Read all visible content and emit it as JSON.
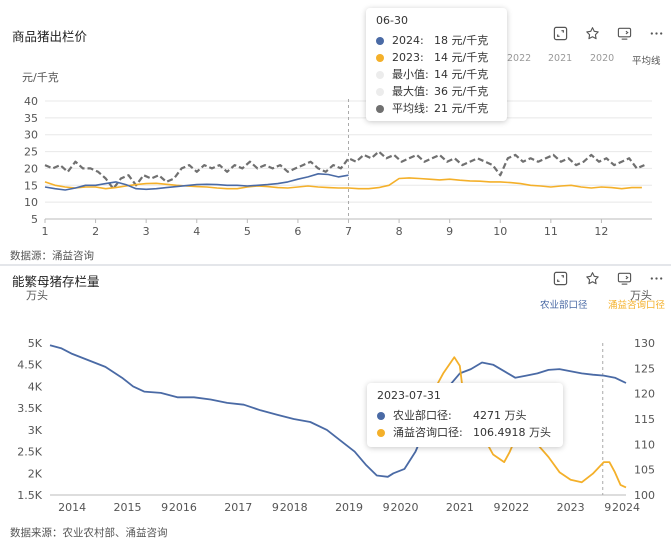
{
  "panel1": {
    "title": "商品猪出栏价",
    "unit": "元/千克",
    "source": "数据源：涌益咨询",
    "year_tabs": [
      "2022",
      "2021",
      "2020",
      "平均线"
    ],
    "tooltip": {
      "date": "06-30",
      "rows": [
        {
          "label": "2024:",
          "value": "18 元/千克",
          "color": "#4a6aa5"
        },
        {
          "label": "2023:",
          "value": "14 元/千克",
          "color": "#f4b02a"
        },
        {
          "label": "最小值:",
          "value": "14 元/千克",
          "color": "#ececec"
        },
        {
          "label": "最大值:",
          "value": "36 元/千克",
          "color": "#ececec"
        },
        {
          "label": "平均线:",
          "value": "21 元/千克",
          "color": "#707070"
        }
      ]
    }
  },
  "panel2": {
    "title": "能繁母猪存栏量",
    "unit_left": "万头",
    "unit_right": "万头",
    "legend_left": "农业部口径",
    "legend_right": "涌益咨询口径",
    "source": "数据来源：农业农村部、涌益咨询",
    "tooltip": {
      "date": "2023-07-31",
      "rows": [
        {
          "label": "农业部口径:",
          "value": "4271 万头",
          "color": "#4a6aa5"
        },
        {
          "label": "涌益咨询口径:",
          "value": "106.4918 万头",
          "color": "#f4b02a"
        }
      ]
    }
  },
  "chart_data": [
    {
      "type": "line",
      "title": "商品猪出栏价",
      "ylabel": "元/千克",
      "x_ticks": [
        "1",
        "2",
        "3",
        "4",
        "5",
        "6",
        "7",
        "8",
        "9",
        "10",
        "11",
        "12"
      ],
      "xlim": [
        1,
        13
      ],
      "ylim": [
        5,
        40
      ],
      "y_ticks": [
        5,
        10,
        15,
        20,
        25,
        30,
        35,
        40
      ],
      "grid": true,
      "legend": "top-right",
      "series": [
        {
          "name": "2024",
          "color": "#4a6aa5",
          "style": "solid",
          "x": [
            1.0,
            1.2,
            1.4,
            1.6,
            1.8,
            2.0,
            2.2,
            2.4,
            2.6,
            2.8,
            3.0,
            3.2,
            3.4,
            3.6,
            3.8,
            4.0,
            4.2,
            4.4,
            4.6,
            4.8,
            5.0,
            5.2,
            5.4,
            5.6,
            5.8,
            6.0,
            6.2,
            6.4,
            6.6,
            6.8,
            7.0
          ],
          "y": [
            14.5,
            14.0,
            13.6,
            14.2,
            15.0,
            15.0,
            15.5,
            16.0,
            15.2,
            14.0,
            13.8,
            14.0,
            14.3,
            14.6,
            14.9,
            15.2,
            15.3,
            15.2,
            15.0,
            15.0,
            14.8,
            15.0,
            15.2,
            15.5,
            16.0,
            16.8,
            17.5,
            18.4,
            18.2,
            17.5,
            18.0
          ]
        },
        {
          "name": "2023",
          "color": "#f4b02a",
          "style": "solid",
          "x": [
            1.0,
            1.2,
            1.4,
            1.6,
            1.8,
            2.0,
            2.2,
            2.4,
            2.6,
            2.8,
            3.0,
            3.2,
            3.4,
            3.6,
            3.8,
            4.0,
            4.2,
            4.4,
            4.6,
            4.8,
            5.0,
            5.2,
            5.4,
            5.6,
            5.8,
            6.0,
            6.2,
            6.4,
            6.6,
            6.8,
            7.0,
            7.2,
            7.4,
            7.6,
            7.8,
            8.0,
            8.2,
            8.4,
            8.6,
            8.8,
            9.0,
            9.2,
            9.4,
            9.6,
            9.8,
            10.0,
            10.2,
            10.4,
            10.6,
            10.8,
            11.0,
            11.2,
            11.4,
            11.6,
            11.8,
            12.0,
            12.2,
            12.4,
            12.6,
            12.8
          ],
          "y": [
            16.0,
            15.0,
            14.5,
            14.2,
            14.5,
            14.5,
            14.0,
            14.3,
            14.8,
            15.2,
            15.5,
            15.6,
            15.3,
            15.0,
            14.8,
            14.6,
            14.5,
            14.2,
            14.0,
            14.0,
            14.5,
            14.8,
            14.6,
            14.3,
            14.2,
            14.5,
            14.8,
            14.5,
            14.3,
            14.2,
            14.2,
            14.0,
            14.0,
            14.3,
            15.0,
            17.0,
            17.2,
            17.0,
            16.8,
            16.6,
            16.8,
            16.5,
            16.3,
            16.2,
            16.0,
            16.0,
            15.8,
            15.5,
            15.0,
            14.8,
            14.5,
            14.8,
            15.0,
            14.5,
            14.2,
            14.5,
            14.3,
            14.0,
            14.3,
            14.3
          ]
        },
        {
          "name": "平均线",
          "color": "#707070",
          "style": "dashed",
          "x": [
            1.0,
            1.15,
            1.3,
            1.45,
            1.6,
            1.75,
            1.9,
            2.05,
            2.2,
            2.35,
            2.5,
            2.65,
            2.8,
            2.95,
            3.1,
            3.25,
            3.4,
            3.55,
            3.7,
            3.85,
            4.0,
            4.15,
            4.3,
            4.45,
            4.6,
            4.75,
            4.9,
            5.05,
            5.2,
            5.35,
            5.5,
            5.65,
            5.8,
            5.95,
            6.1,
            6.25,
            6.4,
            6.55,
            6.7,
            6.85,
            7.0,
            7.15,
            7.3,
            7.45,
            7.6,
            7.75,
            7.9,
            8.05,
            8.2,
            8.35,
            8.5,
            8.65,
            8.8,
            8.95,
            9.1,
            9.25,
            9.4,
            9.55,
            9.7,
            9.85,
            10.0,
            10.15,
            10.3,
            10.45,
            10.6,
            10.75,
            10.9,
            11.05,
            11.2,
            11.35,
            11.5,
            11.65,
            11.8,
            11.95,
            12.1,
            12.25,
            12.4,
            12.55,
            12.7,
            12.85
          ],
          "y": [
            21,
            20,
            21,
            19,
            22,
            20,
            20,
            19,
            17,
            14,
            17,
            18,
            15,
            18,
            17,
            18,
            16,
            17,
            20,
            21,
            19,
            21,
            20,
            21,
            19,
            21,
            20,
            22,
            20,
            21,
            20,
            21,
            19,
            20,
            21,
            22,
            20,
            19,
            21,
            20,
            23,
            22,
            24,
            23,
            25,
            23,
            24,
            22,
            23,
            24,
            22,
            23,
            24,
            22,
            23,
            21,
            22,
            23,
            22,
            21,
            18,
            23,
            24,
            22,
            23,
            22,
            23,
            24,
            22,
            23,
            21,
            22,
            24,
            22,
            23,
            21,
            22,
            23,
            20,
            21
          ]
        }
      ],
      "annotations": [
        {
          "type": "vertical-dashed-line",
          "x": 7.0
        }
      ]
    },
    {
      "type": "line",
      "title": "能繁母猪存栏量",
      "ylabel": "万头",
      "ylabel_right": "万头",
      "x_ticks": [
        "2014",
        "2015",
        "9",
        "2016",
        "2017",
        "9",
        "2018",
        "2019",
        "9",
        "2020",
        "2021",
        "9",
        "2022",
        "2023",
        "9",
        "2024"
      ],
      "xlim": [
        2013.6,
        2024.0
      ],
      "ylim_left": [
        1.5,
        5.0
      ],
      "y_ticks_left": [
        "1.5K",
        "2K",
        "2.5K",
        "3K",
        "3.5K",
        "4K",
        "4.5K",
        "5K"
      ],
      "ylim_right": [
        100,
        130
      ],
      "y_ticks_right": [
        100,
        105,
        110,
        115,
        120,
        125,
        130
      ],
      "legend": "top-right",
      "series": [
        {
          "name": "农业部口径",
          "axis": "left",
          "color": "#4a6aa5",
          "x": [
            2013.6,
            2013.8,
            2014.0,
            2014.3,
            2014.6,
            2014.9,
            2015.1,
            2015.3,
            2015.6,
            2015.9,
            2016.2,
            2016.5,
            2016.8,
            2017.1,
            2017.4,
            2017.7,
            2018.0,
            2018.3,
            2018.6,
            2018.9,
            2019.1,
            2019.3,
            2019.5,
            2019.7,
            2019.8,
            2020.0,
            2020.2,
            2020.4,
            2020.6,
            2020.8,
            2021.0,
            2021.2,
            2021.4,
            2021.6,
            2021.8,
            2022.0,
            2022.2,
            2022.4,
            2022.6,
            2022.8,
            2023.0,
            2023.2,
            2023.4,
            2023.6,
            2023.8,
            2024.0
          ],
          "y": [
            4.95,
            4.88,
            4.75,
            4.6,
            4.45,
            4.2,
            4.0,
            3.88,
            3.85,
            3.75,
            3.75,
            3.7,
            3.62,
            3.58,
            3.45,
            3.35,
            3.25,
            3.18,
            3.0,
            2.7,
            2.5,
            2.2,
            1.95,
            1.92,
            2.0,
            2.1,
            2.5,
            3.1,
            3.6,
            4.0,
            4.3,
            4.4,
            4.55,
            4.5,
            4.35,
            4.2,
            4.25,
            4.3,
            4.38,
            4.4,
            4.35,
            4.3,
            4.27,
            4.25,
            4.2,
            4.08
          ]
        },
        {
          "name": "涌益咨询口径",
          "axis": "right",
          "color": "#f4b02a",
          "x": [
            2020.3,
            2020.5,
            2020.7,
            2020.9,
            2021.0,
            2021.1,
            2021.2,
            2021.3,
            2021.4,
            2021.5,
            2021.6,
            2021.8,
            2021.9,
            2022.0,
            2022.2,
            2022.4,
            2022.6,
            2022.8,
            2023.0,
            2023.2,
            2023.4,
            2023.6,
            2023.7,
            2023.8,
            2023.9,
            2024.0
          ],
          "y": [
            116,
            120,
            124,
            127.2,
            125.5,
            116.5,
            121.5,
            116,
            112,
            110,
            108,
            106.5,
            108.5,
            111,
            113,
            110,
            107.5,
            104.5,
            103,
            102.5,
            104.2,
            106.5,
            106.49,
            104.5,
            102,
            101.5
          ]
        }
      ],
      "annotations": [
        {
          "type": "vertical-dashed-line",
          "x": 2023.58
        }
      ]
    }
  ]
}
